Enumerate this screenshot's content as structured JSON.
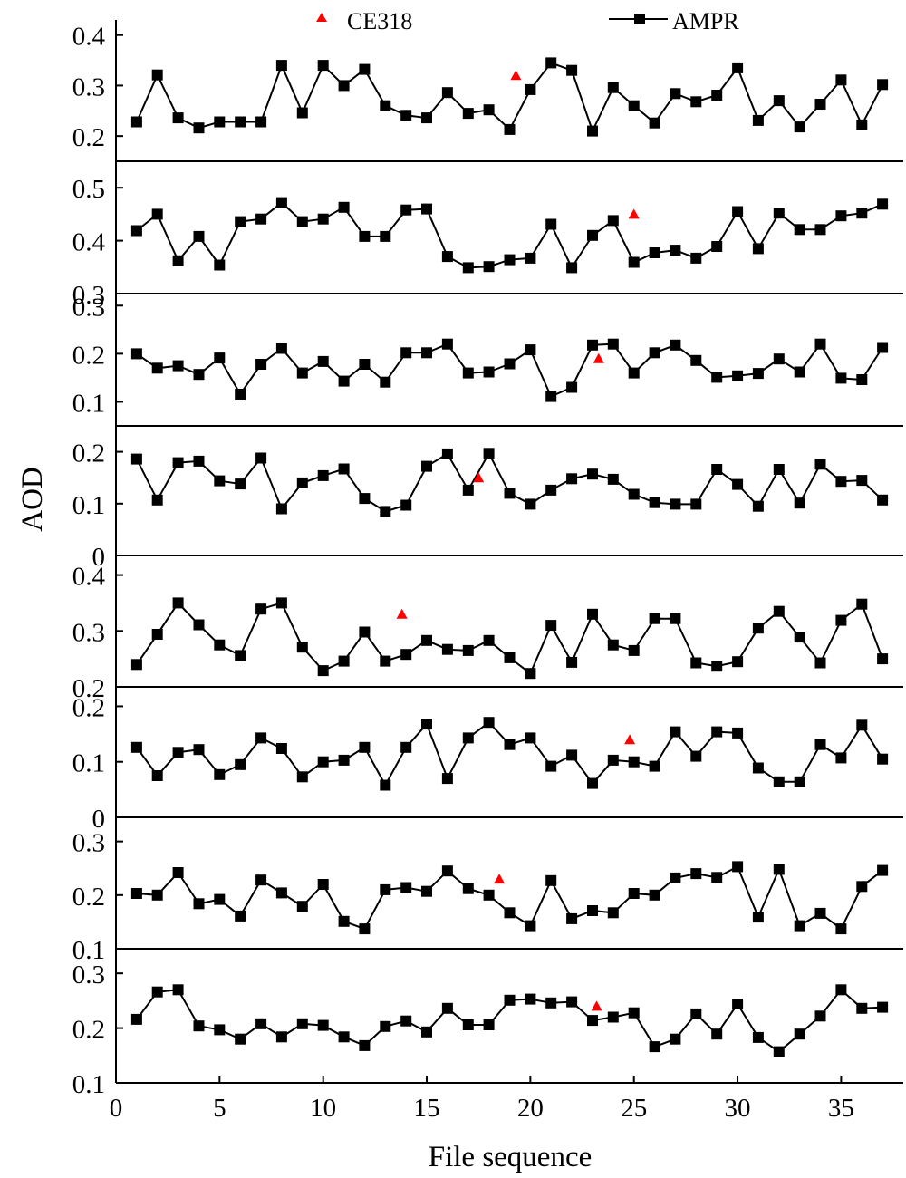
{
  "chart_data": {
    "type": "line",
    "xlabel": "File sequence",
    "ylabel": "AOD",
    "xlim": [
      0,
      38
    ],
    "xticks": [
      "0",
      "5",
      "10",
      "15",
      "20",
      "25",
      "30",
      "35"
    ],
    "xtick_values": [
      0,
      5,
      10,
      15,
      20,
      25,
      30,
      35
    ],
    "legend": {
      "placement": "top",
      "entries": [
        {
          "name": "CE318",
          "marker": "triangle",
          "color": "#ff0000"
        },
        {
          "name": "AMPR",
          "marker": "square-line",
          "color": "#000000"
        }
      ]
    },
    "colors": {
      "AMPR": "#000000",
      "CE318": "#ff0000"
    },
    "panels": [
      {
        "ylim": [
          0.15,
          0.43
        ],
        "yticks": [
          "0.2",
          "0.3",
          "0.4"
        ],
        "ytick_values": [
          0.2,
          0.3,
          0.4
        ],
        "ampr": [
          0.228,
          0.321,
          0.236,
          0.216,
          0.228,
          0.228,
          0.228,
          0.34,
          0.246,
          0.34,
          0.3,
          0.332,
          0.26,
          0.241,
          0.236,
          0.286,
          0.245,
          0.252,
          0.213,
          0.292,
          0.345,
          0.33,
          0.21,
          0.296,
          0.26,
          0.226,
          0.284,
          0.268,
          0.281,
          0.335,
          0.231,
          0.27,
          0.218,
          0.263,
          0.311,
          0.222,
          0.302
        ],
        "ce318": {
          "x": 19.3,
          "y": 0.32
        }
      },
      {
        "ylim": [
          0.3,
          0.55
        ],
        "yticks": [
          "0.3",
          "0.4",
          "0.5"
        ],
        "ytick_values": [
          0.3,
          0.4,
          0.5
        ],
        "ampr": [
          0.419,
          0.45,
          0.362,
          0.408,
          0.354,
          0.436,
          0.441,
          0.472,
          0.436,
          0.441,
          0.463,
          0.408,
          0.408,
          0.458,
          0.46,
          0.37,
          0.349,
          0.351,
          0.364,
          0.367,
          0.431,
          0.349,
          0.41,
          0.438,
          0.359,
          0.377,
          0.382,
          0.367,
          0.389,
          0.455,
          0.385,
          0.452,
          0.421,
          0.421,
          0.447,
          0.452,
          0.469
        ],
        "ce318": {
          "x": 25.0,
          "y": 0.45
        }
      },
      {
        "ylim": [
          0.05,
          0.325
        ],
        "yticks": [
          "0.1",
          "0.2",
          "0.3"
        ],
        "ytick_values": [
          0.1,
          0.2,
          0.3
        ],
        "ampr": [
          0.2,
          0.17,
          0.175,
          0.157,
          0.191,
          0.116,
          0.178,
          0.211,
          0.16,
          0.184,
          0.143,
          0.178,
          0.141,
          0.202,
          0.202,
          0.22,
          0.16,
          0.162,
          0.179,
          0.208,
          0.111,
          0.13,
          0.218,
          0.22,
          0.16,
          0.202,
          0.218,
          0.186,
          0.151,
          0.154,
          0.159,
          0.189,
          0.162,
          0.22,
          0.149,
          0.146,
          0.213
        ],
        "ce318": {
          "x": 23.3,
          "y": 0.19
        }
      },
      {
        "ylim": [
          0,
          0.25
        ],
        "yticks": [
          "0",
          "0.1",
          "0.2"
        ],
        "ytick_values": [
          0,
          0.1,
          0.2
        ],
        "ampr": [
          0.186,
          0.107,
          0.179,
          0.182,
          0.144,
          0.138,
          0.188,
          0.09,
          0.14,
          0.154,
          0.167,
          0.11,
          0.085,
          0.097,
          0.172,
          0.196,
          0.126,
          0.197,
          0.12,
          0.099,
          0.126,
          0.148,
          0.157,
          0.147,
          0.118,
          0.102,
          0.099,
          0.099,
          0.166,
          0.137,
          0.095,
          0.166,
          0.101,
          0.176,
          0.143,
          0.145,
          0.107
        ],
        "ce318": {
          "x": 17.5,
          "y": 0.15
        }
      },
      {
        "ylim": [
          0.2,
          0.435
        ],
        "yticks": [
          "0.2",
          "0.3",
          "0.4"
        ],
        "ytick_values": [
          0.2,
          0.3,
          0.4
        ],
        "ampr": [
          0.24,
          0.294,
          0.35,
          0.311,
          0.275,
          0.256,
          0.339,
          0.35,
          0.271,
          0.229,
          0.246,
          0.298,
          0.246,
          0.258,
          0.283,
          0.267,
          0.265,
          0.283,
          0.252,
          0.224,
          0.31,
          0.244,
          0.33,
          0.275,
          0.265,
          0.322,
          0.322,
          0.243,
          0.237,
          0.245,
          0.305,
          0.335,
          0.289,
          0.243,
          0.319,
          0.348,
          0.25
        ],
        "ce318": {
          "x": 13.8,
          "y": 0.33
        }
      },
      {
        "ylim": [
          0,
          0.235
        ],
        "yticks": [
          "0",
          "0.1",
          "0.2"
        ],
        "ytick_values": [
          0,
          0.1,
          0.2
        ],
        "ampr": [
          0.126,
          0.075,
          0.117,
          0.122,
          0.077,
          0.095,
          0.143,
          0.124,
          0.073,
          0.1,
          0.103,
          0.126,
          0.058,
          0.126,
          0.168,
          0.07,
          0.143,
          0.171,
          0.131,
          0.143,
          0.092,
          0.112,
          0.061,
          0.103,
          0.1,
          0.092,
          0.154,
          0.11,
          0.154,
          0.152,
          0.089,
          0.064,
          0.064,
          0.131,
          0.107,
          0.166,
          0.105
        ],
        "ce318": {
          "x": 24.8,
          "y": 0.14
        }
      },
      {
        "ylim": [
          0.1,
          0.345
        ],
        "yticks": [
          "0.1",
          "0.2",
          "0.3"
        ],
        "ytick_values": [
          0.1,
          0.2,
          0.3
        ],
        "ampr": [
          0.203,
          0.2,
          0.242,
          0.184,
          0.192,
          0.161,
          0.228,
          0.204,
          0.179,
          0.22,
          0.151,
          0.137,
          0.21,
          0.214,
          0.207,
          0.245,
          0.212,
          0.2,
          0.167,
          0.143,
          0.227,
          0.156,
          0.171,
          0.167,
          0.203,
          0.2,
          0.232,
          0.24,
          0.233,
          0.253,
          0.159,
          0.248,
          0.143,
          0.166,
          0.137,
          0.216,
          0.246
        ],
        "ce318": {
          "x": 18.5,
          "y": 0.23
        }
      },
      {
        "ylim": [
          0.1,
          0.345
        ],
        "yticks": [
          "0.1",
          "0.2",
          "0.3"
        ],
        "ytick_values": [
          0.1,
          0.2,
          0.3
        ],
        "ampr": [
          0.216,
          0.266,
          0.27,
          0.204,
          0.197,
          0.18,
          0.208,
          0.184,
          0.208,
          0.205,
          0.184,
          0.168,
          0.203,
          0.213,
          0.193,
          0.236,
          0.206,
          0.206,
          0.251,
          0.253,
          0.246,
          0.248,
          0.214,
          0.22,
          0.228,
          0.166,
          0.18,
          0.226,
          0.189,
          0.244,
          0.183,
          0.157,
          0.189,
          0.222,
          0.27,
          0.236,
          0.238
        ],
        "ce318": {
          "x": 23.2,
          "y": 0.24
        }
      }
    ]
  }
}
